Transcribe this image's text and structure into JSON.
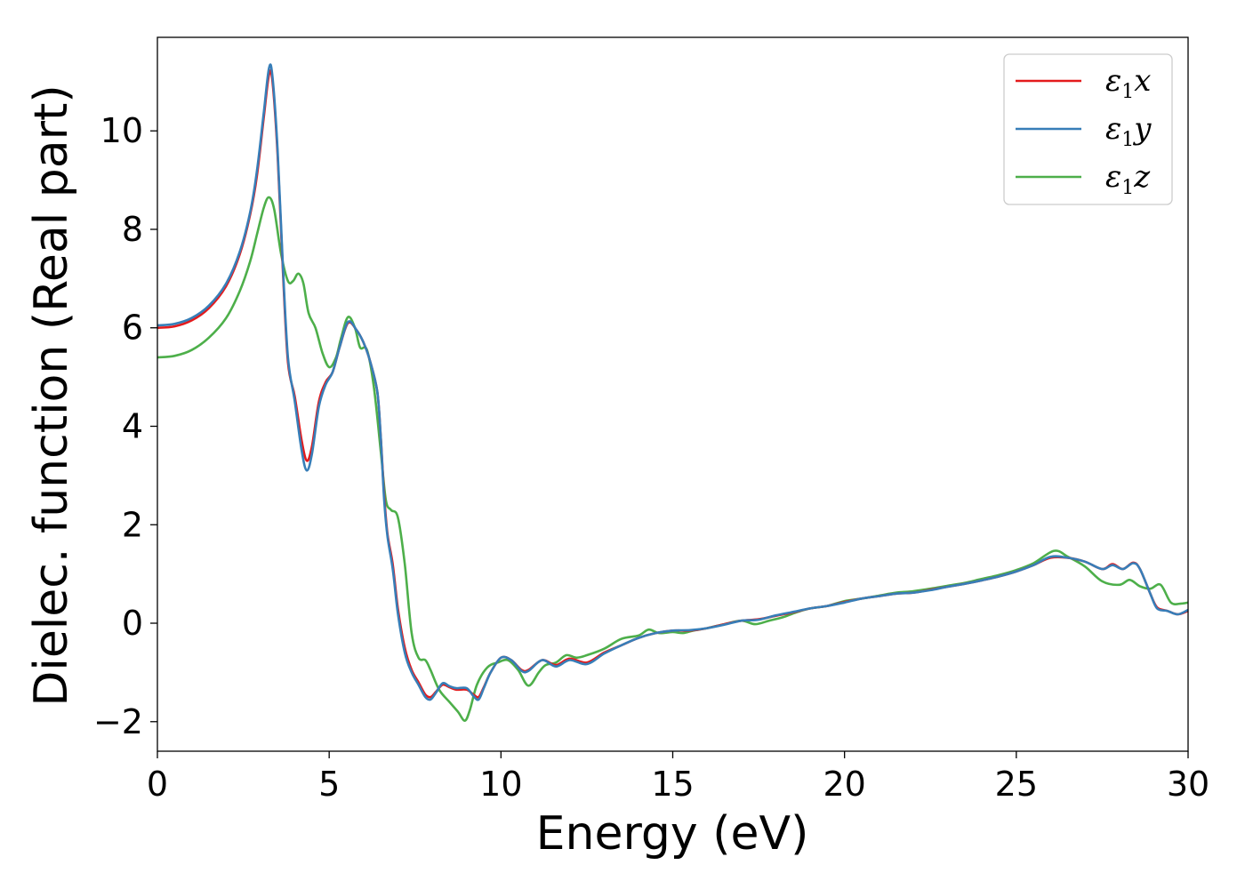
{
  "chart_data": {
    "type": "line",
    "title": "",
    "xlabel": "Energy (eV)",
    "ylabel": "Dielec. function (Real part)",
    "xlim": [
      0,
      30
    ],
    "ylim": [
      -2.6,
      11.9
    ],
    "xticks": [
      0,
      5,
      10,
      15,
      20,
      25,
      30
    ],
    "yticks": [
      -2,
      0,
      2,
      4,
      6,
      8,
      10
    ],
    "xtick_labels": [
      "0",
      "5",
      "10",
      "15",
      "20",
      "25",
      "30"
    ],
    "ytick_labels": [
      "−2",
      "0",
      "2",
      "4",
      "6",
      "8",
      "10"
    ],
    "grid": false,
    "legend_position": "top-right",
    "series": [
      {
        "name": "ε₁x",
        "symbol": "ε",
        "subscript": "1",
        "suffix": "x",
        "color": "#e41a1c",
        "points": [
          [
            0,
            6.0
          ],
          [
            0.5,
            6.03
          ],
          [
            1.0,
            6.15
          ],
          [
            1.5,
            6.4
          ],
          [
            2.0,
            6.85
          ],
          [
            2.4,
            7.5
          ],
          [
            2.7,
            8.3
          ],
          [
            2.9,
            9.1
          ],
          [
            3.1,
            10.3
          ],
          [
            3.25,
            11.15
          ],
          [
            3.35,
            11.0
          ],
          [
            3.5,
            9.5
          ],
          [
            3.65,
            7.2
          ],
          [
            3.8,
            5.3
          ],
          [
            4.0,
            4.6
          ],
          [
            4.2,
            3.7
          ],
          [
            4.35,
            3.3
          ],
          [
            4.5,
            3.6
          ],
          [
            4.7,
            4.5
          ],
          [
            4.9,
            4.9
          ],
          [
            5.1,
            5.1
          ],
          [
            5.3,
            5.6
          ],
          [
            5.55,
            6.1
          ],
          [
            5.8,
            5.95
          ],
          [
            6.0,
            5.7
          ],
          [
            6.2,
            5.3
          ],
          [
            6.4,
            4.7
          ],
          [
            6.5,
            3.8
          ],
          [
            6.6,
            2.6
          ],
          [
            6.7,
            1.8
          ],
          [
            6.85,
            1.2
          ],
          [
            7.0,
            0.3
          ],
          [
            7.2,
            -0.5
          ],
          [
            7.4,
            -0.95
          ],
          [
            7.6,
            -1.2
          ],
          [
            7.8,
            -1.45
          ],
          [
            7.95,
            -1.5
          ],
          [
            8.1,
            -1.4
          ],
          [
            8.3,
            -1.25
          ],
          [
            8.5,
            -1.3
          ],
          [
            8.7,
            -1.35
          ],
          [
            9.0,
            -1.35
          ],
          [
            9.2,
            -1.45
          ],
          [
            9.35,
            -1.5
          ],
          [
            9.5,
            -1.3
          ],
          [
            9.7,
            -1.0
          ],
          [
            10.0,
            -0.7
          ],
          [
            10.3,
            -0.75
          ],
          [
            10.6,
            -0.95
          ],
          [
            10.8,
            -0.95
          ],
          [
            11.2,
            -0.75
          ],
          [
            11.6,
            -0.85
          ],
          [
            12.0,
            -0.72
          ],
          [
            12.5,
            -0.8
          ],
          [
            13.0,
            -0.6
          ],
          [
            13.5,
            -0.45
          ],
          [
            14.0,
            -0.3
          ],
          [
            14.5,
            -0.2
          ],
          [
            15.0,
            -0.15
          ],
          [
            15.5,
            -0.15
          ],
          [
            16.0,
            -0.1
          ],
          [
            16.5,
            -0.02
          ],
          [
            17.0,
            0.05
          ],
          [
            17.5,
            0.08
          ],
          [
            18.0,
            0.15
          ],
          [
            18.5,
            0.22
          ],
          [
            19.0,
            0.3
          ],
          [
            19.5,
            0.35
          ],
          [
            20.0,
            0.43
          ],
          [
            20.5,
            0.5
          ],
          [
            21.0,
            0.55
          ],
          [
            21.5,
            0.6
          ],
          [
            22.0,
            0.62
          ],
          [
            22.5,
            0.68
          ],
          [
            23.0,
            0.74
          ],
          [
            23.5,
            0.8
          ],
          [
            24.0,
            0.87
          ],
          [
            24.5,
            0.95
          ],
          [
            25.0,
            1.05
          ],
          [
            25.5,
            1.18
          ],
          [
            26.0,
            1.33
          ],
          [
            26.5,
            1.33
          ],
          [
            27.0,
            1.25
          ],
          [
            27.5,
            1.1
          ],
          [
            27.8,
            1.2
          ],
          [
            28.1,
            1.1
          ],
          [
            28.4,
            1.23
          ],
          [
            28.6,
            1.1
          ],
          [
            28.9,
            0.6
          ],
          [
            29.1,
            0.32
          ],
          [
            29.4,
            0.25
          ],
          [
            29.7,
            0.18
          ],
          [
            30.0,
            0.25
          ]
        ]
      },
      {
        "name": "ε₁y",
        "symbol": "ε",
        "subscript": "1",
        "suffix": "y",
        "color": "#377eb8",
        "points": [
          [
            0,
            6.05
          ],
          [
            0.5,
            6.08
          ],
          [
            1.0,
            6.2
          ],
          [
            1.5,
            6.45
          ],
          [
            2.0,
            6.9
          ],
          [
            2.4,
            7.55
          ],
          [
            2.7,
            8.35
          ],
          [
            2.9,
            9.2
          ],
          [
            3.1,
            10.4
          ],
          [
            3.25,
            11.28
          ],
          [
            3.35,
            11.1
          ],
          [
            3.5,
            9.6
          ],
          [
            3.65,
            7.3
          ],
          [
            3.8,
            5.4
          ],
          [
            4.0,
            4.5
          ],
          [
            4.2,
            3.5
          ],
          [
            4.35,
            3.1
          ],
          [
            4.5,
            3.45
          ],
          [
            4.7,
            4.4
          ],
          [
            4.9,
            4.85
          ],
          [
            5.1,
            5.1
          ],
          [
            5.3,
            5.6
          ],
          [
            5.55,
            6.12
          ],
          [
            5.8,
            5.95
          ],
          [
            6.0,
            5.7
          ],
          [
            6.2,
            5.3
          ],
          [
            6.4,
            4.7
          ],
          [
            6.5,
            3.8
          ],
          [
            6.6,
            2.5
          ],
          [
            6.7,
            1.75
          ],
          [
            6.85,
            1.1
          ],
          [
            7.0,
            0.2
          ],
          [
            7.2,
            -0.6
          ],
          [
            7.4,
            -1.0
          ],
          [
            7.6,
            -1.25
          ],
          [
            7.8,
            -1.5
          ],
          [
            7.95,
            -1.55
          ],
          [
            8.1,
            -1.42
          ],
          [
            8.3,
            -1.22
          ],
          [
            8.5,
            -1.28
          ],
          [
            8.7,
            -1.32
          ],
          [
            9.0,
            -1.32
          ],
          [
            9.2,
            -1.48
          ],
          [
            9.35,
            -1.55
          ],
          [
            9.5,
            -1.32
          ],
          [
            9.7,
            -1.0
          ],
          [
            10.0,
            -0.7
          ],
          [
            10.3,
            -0.75
          ],
          [
            10.6,
            -0.97
          ],
          [
            10.8,
            -0.97
          ],
          [
            11.2,
            -0.75
          ],
          [
            11.6,
            -0.88
          ],
          [
            12.0,
            -0.75
          ],
          [
            12.5,
            -0.83
          ],
          [
            13.0,
            -0.62
          ],
          [
            13.5,
            -0.45
          ],
          [
            14.0,
            -0.3
          ],
          [
            14.5,
            -0.2
          ],
          [
            15.0,
            -0.15
          ],
          [
            15.5,
            -0.14
          ],
          [
            16.0,
            -0.1
          ],
          [
            16.5,
            -0.03
          ],
          [
            17.0,
            0.05
          ],
          [
            17.5,
            0.07
          ],
          [
            18.0,
            0.16
          ],
          [
            18.5,
            0.23
          ],
          [
            19.0,
            0.3
          ],
          [
            19.5,
            0.35
          ],
          [
            20.0,
            0.42
          ],
          [
            20.5,
            0.5
          ],
          [
            21.0,
            0.55
          ],
          [
            21.5,
            0.6
          ],
          [
            22.0,
            0.62
          ],
          [
            22.5,
            0.67
          ],
          [
            23.0,
            0.74
          ],
          [
            23.5,
            0.8
          ],
          [
            24.0,
            0.87
          ],
          [
            24.5,
            0.95
          ],
          [
            25.0,
            1.05
          ],
          [
            25.5,
            1.18
          ],
          [
            26.0,
            1.35
          ],
          [
            26.5,
            1.33
          ],
          [
            27.0,
            1.25
          ],
          [
            27.5,
            1.1
          ],
          [
            27.8,
            1.18
          ],
          [
            28.1,
            1.1
          ],
          [
            28.4,
            1.22
          ],
          [
            28.6,
            1.1
          ],
          [
            28.9,
            0.6
          ],
          [
            29.1,
            0.3
          ],
          [
            29.4,
            0.25
          ],
          [
            29.7,
            0.18
          ],
          [
            30.0,
            0.27
          ]
        ]
      },
      {
        "name": "ε₁z",
        "symbol": "ε",
        "subscript": "1",
        "suffix": "z",
        "color": "#4daf4a",
        "points": [
          [
            0,
            5.4
          ],
          [
            0.5,
            5.43
          ],
          [
            1.0,
            5.55
          ],
          [
            1.5,
            5.8
          ],
          [
            2.0,
            6.2
          ],
          [
            2.4,
            6.75
          ],
          [
            2.7,
            7.35
          ],
          [
            2.9,
            7.9
          ],
          [
            3.1,
            8.45
          ],
          [
            3.25,
            8.65
          ],
          [
            3.4,
            8.4
          ],
          [
            3.6,
            7.5
          ],
          [
            3.8,
            6.95
          ],
          [
            3.95,
            6.95
          ],
          [
            4.1,
            7.1
          ],
          [
            4.25,
            6.9
          ],
          [
            4.4,
            6.3
          ],
          [
            4.6,
            6.0
          ],
          [
            4.8,
            5.5
          ],
          [
            5.0,
            5.2
          ],
          [
            5.2,
            5.4
          ],
          [
            5.35,
            5.8
          ],
          [
            5.55,
            6.22
          ],
          [
            5.75,
            6.0
          ],
          [
            5.9,
            5.6
          ],
          [
            6.1,
            5.55
          ],
          [
            6.3,
            4.8
          ],
          [
            6.5,
            3.5
          ],
          [
            6.65,
            2.5
          ],
          [
            6.8,
            2.3
          ],
          [
            7.0,
            2.15
          ],
          [
            7.2,
            1.2
          ],
          [
            7.4,
            -0.2
          ],
          [
            7.6,
            -0.7
          ],
          [
            7.8,
            -0.75
          ],
          [
            7.95,
            -0.95
          ],
          [
            8.2,
            -1.35
          ],
          [
            8.5,
            -1.6
          ],
          [
            8.75,
            -1.8
          ],
          [
            8.95,
            -1.98
          ],
          [
            9.1,
            -1.75
          ],
          [
            9.3,
            -1.25
          ],
          [
            9.6,
            -0.9
          ],
          [
            9.9,
            -0.8
          ],
          [
            10.2,
            -0.75
          ],
          [
            10.5,
            -0.95
          ],
          [
            10.8,
            -1.27
          ],
          [
            11.1,
            -1.0
          ],
          [
            11.3,
            -0.85
          ],
          [
            11.6,
            -0.8
          ],
          [
            11.9,
            -0.65
          ],
          [
            12.2,
            -0.7
          ],
          [
            12.5,
            -0.65
          ],
          [
            13.0,
            -0.52
          ],
          [
            13.5,
            -0.32
          ],
          [
            14.0,
            -0.25
          ],
          [
            14.3,
            -0.13
          ],
          [
            14.6,
            -0.2
          ],
          [
            15.0,
            -0.18
          ],
          [
            15.3,
            -0.2
          ],
          [
            15.6,
            -0.15
          ],
          [
            16.0,
            -0.1
          ],
          [
            16.5,
            -0.02
          ],
          [
            17.0,
            0.05
          ],
          [
            17.4,
            -0.02
          ],
          [
            17.8,
            0.05
          ],
          [
            18.2,
            0.12
          ],
          [
            18.6,
            0.22
          ],
          [
            19.0,
            0.3
          ],
          [
            19.5,
            0.35
          ],
          [
            20.0,
            0.45
          ],
          [
            20.5,
            0.5
          ],
          [
            21.0,
            0.56
          ],
          [
            21.5,
            0.62
          ],
          [
            22.0,
            0.65
          ],
          [
            22.5,
            0.7
          ],
          [
            23.0,
            0.76
          ],
          [
            23.5,
            0.82
          ],
          [
            24.0,
            0.9
          ],
          [
            24.5,
            0.98
          ],
          [
            25.0,
            1.08
          ],
          [
            25.5,
            1.22
          ],
          [
            26.1,
            1.47
          ],
          [
            26.5,
            1.35
          ],
          [
            27.0,
            1.15
          ],
          [
            27.5,
            0.85
          ],
          [
            28.0,
            0.78
          ],
          [
            28.3,
            0.88
          ],
          [
            28.6,
            0.75
          ],
          [
            28.9,
            0.7
          ],
          [
            29.2,
            0.78
          ],
          [
            29.5,
            0.42
          ],
          [
            29.8,
            0.4
          ],
          [
            30.0,
            0.42
          ]
        ]
      }
    ]
  }
}
